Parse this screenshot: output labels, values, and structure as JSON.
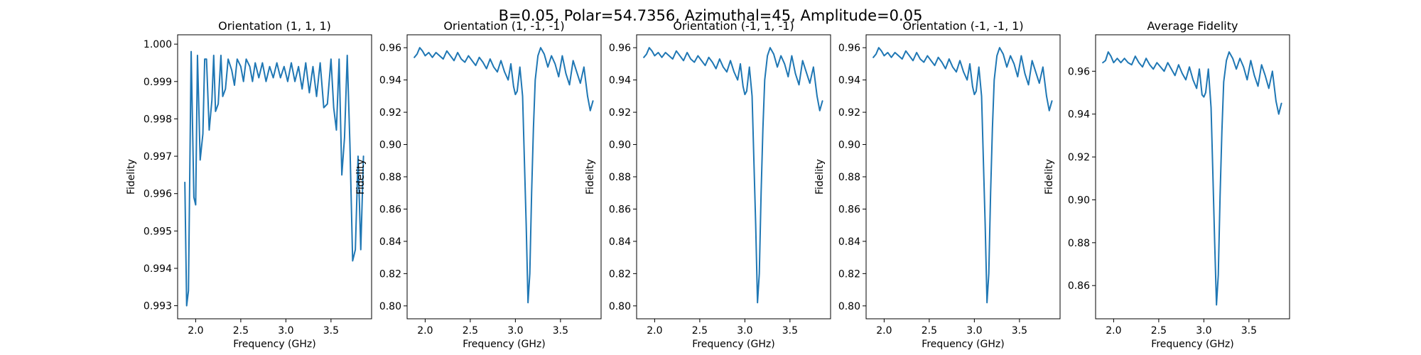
{
  "figure": {
    "suptitle": "B=0.05, Polar=54.7356, Azimuthal=45, Amplitude=0.05",
    "line_color": "#1f77b4"
  },
  "chart_data": [
    {
      "type": "line",
      "title": "Orientation (1, 1, 1)",
      "xlabel": "Frequency (GHz)",
      "ylabel": "Fidelity",
      "xlim": [
        1.8,
        3.95
      ],
      "ylim": [
        0.99265,
        1.00025
      ],
      "xticks": [
        2.0,
        2.5,
        3.0,
        3.5
      ],
      "xtick_labels": [
        "2.0",
        "2.5",
        "3.0",
        "3.5"
      ],
      "yticks": [
        0.993,
        0.994,
        0.995,
        0.996,
        0.997,
        0.998,
        0.999,
        1.0
      ],
      "ytick_labels": [
        "0.993",
        "0.994",
        "0.995",
        "0.996",
        "0.997",
        "0.998",
        "0.999",
        "1.000"
      ],
      "series": [
        {
          "x": [
            1.88,
            1.9,
            1.92,
            1.95,
            1.98,
            2.0,
            2.02,
            2.05,
            2.08,
            2.1,
            2.12,
            2.15,
            2.18,
            2.2,
            2.22,
            2.25,
            2.28,
            2.3,
            2.33,
            2.36,
            2.4,
            2.43,
            2.46,
            2.5,
            2.53,
            2.56,
            2.6,
            2.63,
            2.66,
            2.7,
            2.74,
            2.78,
            2.82,
            2.86,
            2.9,
            2.94,
            2.98,
            3.02,
            3.06,
            3.1,
            3.14,
            3.18,
            3.22,
            3.26,
            3.3,
            3.34,
            3.38,
            3.42,
            3.46,
            3.5,
            3.53,
            3.56,
            3.59,
            3.62,
            3.65,
            3.68,
            3.71,
            3.74,
            3.77,
            3.8,
            3.83,
            3.86
          ],
          "y": [
            0.9963,
            0.993,
            0.9934,
            0.9998,
            0.9959,
            0.9957,
            0.9997,
            0.9969,
            0.9976,
            0.9996,
            0.9996,
            0.9977,
            0.9985,
            0.9997,
            0.9982,
            0.9984,
            0.9997,
            0.9986,
            0.9988,
            0.9996,
            0.9993,
            0.9989,
            0.9996,
            0.9994,
            0.999,
            0.9996,
            0.9994,
            0.999,
            0.9995,
            0.9991,
            0.9995,
            0.999,
            0.9994,
            0.9991,
            0.9995,
            0.9991,
            0.9994,
            0.999,
            0.9995,
            0.999,
            0.9994,
            0.9988,
            0.9995,
            0.9987,
            0.9994,
            0.9986,
            0.9995,
            0.9983,
            0.9984,
            0.9996,
            0.9983,
            0.9977,
            0.9996,
            0.9965,
            0.9975,
            0.9997,
            0.9973,
            0.9942,
            0.9945,
            0.997,
            0.9945,
            0.997
          ]
        }
      ]
    },
    {
      "type": "line",
      "title": "Orientation (1, -1, -1)",
      "xlabel": "Frequency (GHz)",
      "ylabel": "Fidelity",
      "xlim": [
        1.8,
        3.95
      ],
      "ylim": [
        0.792,
        0.968
      ],
      "xticks": [
        2.0,
        2.5,
        3.0,
        3.5
      ],
      "xtick_labels": [
        "2.0",
        "2.5",
        "3.0",
        "3.5"
      ],
      "yticks": [
        0.8,
        0.82,
        0.84,
        0.86,
        0.88,
        0.9,
        0.92,
        0.94,
        0.96
      ],
      "ytick_labels": [
        "0.80",
        "0.82",
        "0.84",
        "0.86",
        "0.88",
        "0.90",
        "0.92",
        "0.94",
        "0.96"
      ],
      "series": [
        {
          "x": [
            1.88,
            1.91,
            1.94,
            1.97,
            2.0,
            2.04,
            2.08,
            2.12,
            2.16,
            2.2,
            2.24,
            2.28,
            2.32,
            2.36,
            2.4,
            2.44,
            2.48,
            2.52,
            2.56,
            2.6,
            2.64,
            2.68,
            2.72,
            2.76,
            2.8,
            2.84,
            2.88,
            2.92,
            2.95,
            2.98,
            3.0,
            3.02,
            3.05,
            3.08,
            3.1,
            3.12,
            3.14,
            3.16,
            3.18,
            3.2,
            3.22,
            3.25,
            3.28,
            3.32,
            3.36,
            3.4,
            3.44,
            3.48,
            3.52,
            3.56,
            3.6,
            3.64,
            3.68,
            3.72,
            3.76,
            3.8,
            3.83,
            3.86
          ],
          "y": [
            0.954,
            0.956,
            0.96,
            0.958,
            0.955,
            0.957,
            0.954,
            0.957,
            0.955,
            0.953,
            0.958,
            0.955,
            0.952,
            0.957,
            0.953,
            0.951,
            0.955,
            0.952,
            0.949,
            0.954,
            0.951,
            0.947,
            0.953,
            0.948,
            0.945,
            0.952,
            0.945,
            0.94,
            0.95,
            0.936,
            0.931,
            0.933,
            0.948,
            0.93,
            0.89,
            0.85,
            0.802,
            0.82,
            0.87,
            0.91,
            0.94,
            0.955,
            0.96,
            0.956,
            0.948,
            0.955,
            0.95,
            0.942,
            0.955,
            0.944,
            0.937,
            0.952,
            0.945,
            0.938,
            0.948,
            0.93,
            0.921,
            0.927
          ]
        }
      ]
    },
    {
      "type": "line",
      "title": "Orientation (-1, 1, -1)",
      "xlabel": "Frequency (GHz)",
      "ylabel": "Fidelity",
      "xlim": [
        1.8,
        3.95
      ],
      "ylim": [
        0.792,
        0.968
      ],
      "xticks": [
        2.0,
        2.5,
        3.0,
        3.5
      ],
      "xtick_labels": [
        "2.0",
        "2.5",
        "3.0",
        "3.5"
      ],
      "yticks": [
        0.8,
        0.82,
        0.84,
        0.86,
        0.88,
        0.9,
        0.92,
        0.94,
        0.96
      ],
      "ytick_labels": [
        "0.80",
        "0.82",
        "0.84",
        "0.86",
        "0.88",
        "0.90",
        "0.92",
        "0.94",
        "0.96"
      ],
      "series": [
        {
          "x": [
            1.88,
            1.91,
            1.94,
            1.97,
            2.0,
            2.04,
            2.08,
            2.12,
            2.16,
            2.2,
            2.24,
            2.28,
            2.32,
            2.36,
            2.4,
            2.44,
            2.48,
            2.52,
            2.56,
            2.6,
            2.64,
            2.68,
            2.72,
            2.76,
            2.8,
            2.84,
            2.88,
            2.92,
            2.95,
            2.98,
            3.0,
            3.02,
            3.05,
            3.08,
            3.1,
            3.12,
            3.14,
            3.16,
            3.18,
            3.2,
            3.22,
            3.25,
            3.28,
            3.32,
            3.36,
            3.4,
            3.44,
            3.48,
            3.52,
            3.56,
            3.6,
            3.64,
            3.68,
            3.72,
            3.76,
            3.8,
            3.83,
            3.86
          ],
          "y": [
            0.954,
            0.956,
            0.96,
            0.958,
            0.955,
            0.957,
            0.954,
            0.957,
            0.955,
            0.953,
            0.958,
            0.955,
            0.952,
            0.957,
            0.953,
            0.951,
            0.955,
            0.952,
            0.949,
            0.954,
            0.951,
            0.947,
            0.953,
            0.948,
            0.945,
            0.952,
            0.945,
            0.94,
            0.95,
            0.936,
            0.931,
            0.933,
            0.948,
            0.93,
            0.89,
            0.85,
            0.802,
            0.82,
            0.87,
            0.91,
            0.94,
            0.955,
            0.96,
            0.956,
            0.948,
            0.955,
            0.95,
            0.942,
            0.955,
            0.944,
            0.937,
            0.952,
            0.945,
            0.938,
            0.948,
            0.93,
            0.921,
            0.927
          ]
        }
      ]
    },
    {
      "type": "line",
      "title": "Orientation (-1, -1, 1)",
      "xlabel": "Frequency (GHz)",
      "ylabel": "Fidelity",
      "xlim": [
        1.8,
        3.95
      ],
      "ylim": [
        0.792,
        0.968
      ],
      "xticks": [
        2.0,
        2.5,
        3.0,
        3.5
      ],
      "xtick_labels": [
        "2.0",
        "2.5",
        "3.0",
        "3.5"
      ],
      "yticks": [
        0.8,
        0.82,
        0.84,
        0.86,
        0.88,
        0.9,
        0.92,
        0.94,
        0.96
      ],
      "ytick_labels": [
        "0.80",
        "0.82",
        "0.84",
        "0.86",
        "0.88",
        "0.90",
        "0.92",
        "0.94",
        "0.96"
      ],
      "series": [
        {
          "x": [
            1.88,
            1.91,
            1.94,
            1.97,
            2.0,
            2.04,
            2.08,
            2.12,
            2.16,
            2.2,
            2.24,
            2.28,
            2.32,
            2.36,
            2.4,
            2.44,
            2.48,
            2.52,
            2.56,
            2.6,
            2.64,
            2.68,
            2.72,
            2.76,
            2.8,
            2.84,
            2.88,
            2.92,
            2.95,
            2.98,
            3.0,
            3.02,
            3.05,
            3.08,
            3.1,
            3.12,
            3.14,
            3.16,
            3.18,
            3.2,
            3.22,
            3.25,
            3.28,
            3.32,
            3.36,
            3.4,
            3.44,
            3.48,
            3.52,
            3.56,
            3.6,
            3.64,
            3.68,
            3.72,
            3.76,
            3.8,
            3.83,
            3.86
          ],
          "y": [
            0.954,
            0.956,
            0.96,
            0.958,
            0.955,
            0.957,
            0.954,
            0.957,
            0.955,
            0.953,
            0.958,
            0.955,
            0.952,
            0.957,
            0.953,
            0.951,
            0.955,
            0.952,
            0.949,
            0.954,
            0.951,
            0.947,
            0.953,
            0.948,
            0.945,
            0.952,
            0.945,
            0.94,
            0.95,
            0.936,
            0.931,
            0.933,
            0.948,
            0.93,
            0.89,
            0.85,
            0.802,
            0.82,
            0.87,
            0.91,
            0.94,
            0.955,
            0.96,
            0.956,
            0.948,
            0.955,
            0.95,
            0.942,
            0.955,
            0.944,
            0.937,
            0.952,
            0.945,
            0.938,
            0.948,
            0.93,
            0.921,
            0.927
          ]
        }
      ]
    },
    {
      "type": "line",
      "title": "Average Fidelity",
      "xlabel": "Frequency (GHz)",
      "ylabel": "Fidelity",
      "xlim": [
        1.8,
        3.95
      ],
      "ylim": [
        0.8445,
        0.977
      ],
      "xticks": [
        2.0,
        2.5,
        3.0,
        3.5
      ],
      "xtick_labels": [
        "2.0",
        "2.5",
        "3.0",
        "3.5"
      ],
      "yticks": [
        0.86,
        0.88,
        0.9,
        0.92,
        0.94,
        0.96
      ],
      "ytick_labels": [
        "0.86",
        "0.88",
        "0.90",
        "0.92",
        "0.94",
        "0.96"
      ],
      "series": [
        {
          "x": [
            1.88,
            1.91,
            1.94,
            1.97,
            2.0,
            2.04,
            2.08,
            2.12,
            2.16,
            2.2,
            2.24,
            2.28,
            2.32,
            2.36,
            2.4,
            2.44,
            2.48,
            2.52,
            2.56,
            2.6,
            2.64,
            2.68,
            2.72,
            2.76,
            2.8,
            2.84,
            2.88,
            2.92,
            2.95,
            2.98,
            3.0,
            3.02,
            3.05,
            3.08,
            3.1,
            3.12,
            3.14,
            3.16,
            3.18,
            3.2,
            3.22,
            3.25,
            3.28,
            3.32,
            3.36,
            3.4,
            3.44,
            3.48,
            3.52,
            3.56,
            3.6,
            3.64,
            3.68,
            3.72,
            3.76,
            3.8,
            3.83,
            3.86
          ],
          "y": [
            0.964,
            0.965,
            0.969,
            0.967,
            0.964,
            0.966,
            0.964,
            0.966,
            0.964,
            0.963,
            0.967,
            0.964,
            0.962,
            0.966,
            0.963,
            0.961,
            0.964,
            0.962,
            0.96,
            0.964,
            0.961,
            0.958,
            0.963,
            0.959,
            0.956,
            0.962,
            0.956,
            0.952,
            0.961,
            0.949,
            0.948,
            0.95,
            0.961,
            0.943,
            0.912,
            0.88,
            0.851,
            0.865,
            0.902,
            0.932,
            0.955,
            0.965,
            0.969,
            0.966,
            0.961,
            0.966,
            0.962,
            0.956,
            0.965,
            0.958,
            0.953,
            0.963,
            0.958,
            0.952,
            0.96,
            0.946,
            0.94,
            0.945
          ]
        }
      ]
    }
  ]
}
